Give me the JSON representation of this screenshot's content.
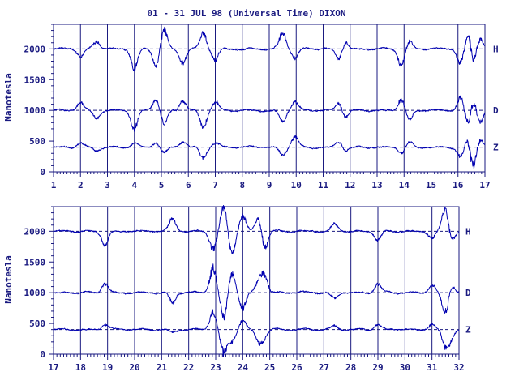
{
  "title": "01 - 31 JUL 98 (Universal Time) DIXON",
  "colors": {
    "ink": "#1a1a80",
    "trace": "#0000b0",
    "background": "#ffffff"
  },
  "chart_data": [
    {
      "type": "line",
      "ylabel": "Nanotesla",
      "ylim": [
        0,
        2400
      ],
      "yticks": [
        0,
        500,
        1000,
        1500,
        2000
      ],
      "xlim": [
        1,
        17
      ],
      "xticks": [
        1,
        2,
        3,
        4,
        5,
        6,
        7,
        8,
        9,
        10,
        11,
        12,
        13,
        14,
        15,
        16,
        17
      ],
      "baselines": [
        2000,
        1000,
        400
      ],
      "series": [
        {
          "name": "H",
          "baseline": 2000,
          "events": [
            [
              2,
              -140
            ],
            [
              2.6,
              120
            ],
            [
              4,
              -320
            ],
            [
              4.8,
              -260
            ],
            [
              5.1,
              300
            ],
            [
              5.8,
              -220
            ],
            [
              6.55,
              260
            ],
            [
              7.0,
              -180
            ],
            [
              9.5,
              260
            ],
            [
              9.95,
              -140
            ],
            [
              11.6,
              -180
            ],
            [
              11.8,
              140
            ],
            [
              13.9,
              -260
            ],
            [
              14.2,
              120
            ],
            [
              16.1,
              -250
            ],
            [
              16.4,
              320
            ],
            [
              16.55,
              -300
            ],
            [
              16.8,
              180
            ]
          ]
        },
        {
          "name": "D",
          "baseline": 1000,
          "events": [
            [
              2,
              120
            ],
            [
              2.6,
              -120
            ],
            [
              4,
              -300
            ],
            [
              4.8,
              180
            ],
            [
              5.1,
              -220
            ],
            [
              5.8,
              160
            ],
            [
              6.55,
              -260
            ],
            [
              7.0,
              140
            ],
            [
              9.5,
              -180
            ],
            [
              9.95,
              150
            ],
            [
              11.6,
              140
            ],
            [
              11.8,
              -120
            ],
            [
              13.9,
              180
            ],
            [
              14.2,
              -150
            ],
            [
              16.1,
              220
            ],
            [
              16.4,
              -300
            ],
            [
              16.55,
              260
            ],
            [
              16.8,
              -200
            ]
          ]
        },
        {
          "name": "Z",
          "baseline": 400,
          "events": [
            [
              2,
              80
            ],
            [
              2.6,
              -60
            ],
            [
              4,
              70
            ],
            [
              4.8,
              80
            ],
            [
              5.1,
              -90
            ],
            [
              5.8,
              90
            ],
            [
              6.55,
              -180
            ],
            [
              7.0,
              70
            ],
            [
              9.5,
              -130
            ],
            [
              9.95,
              180
            ],
            [
              11.6,
              110
            ],
            [
              11.8,
              -70
            ],
            [
              13.9,
              -100
            ],
            [
              14.2,
              70
            ],
            [
              16.1,
              -150
            ],
            [
              16.4,
              200
            ],
            [
              16.55,
              -380
            ],
            [
              16.8,
              150
            ]
          ]
        }
      ]
    },
    {
      "type": "line",
      "ylabel": "Nanotesla",
      "ylim": [
        0,
        2400
      ],
      "yticks": [
        0,
        500,
        1000,
        1500,
        2000
      ],
      "xlim": [
        17,
        32
      ],
      "xticks": [
        17,
        18,
        19,
        20,
        21,
        22,
        23,
        24,
        25,
        26,
        27,
        28,
        29,
        30,
        31,
        32
      ],
      "baselines": [
        2000,
        1000,
        400
      ],
      "series": [
        {
          "name": "H",
          "baseline": 2000,
          "events": [
            [
              18.9,
              -200
            ],
            [
              21.4,
              200
            ],
            [
              22.9,
              -300
            ],
            [
              23.3,
              380
            ],
            [
              23.6,
              -350
            ],
            [
              24.0,
              250
            ],
            [
              24.6,
              280
            ],
            [
              24.8,
              -300
            ],
            [
              27.4,
              120
            ],
            [
              29.0,
              -150
            ],
            [
              31.0,
              -120
            ],
            [
              31.5,
              380
            ],
            [
              31.7,
              -160
            ]
          ]
        },
        {
          "name": "D",
          "baseline": 1000,
          "events": [
            [
              18.9,
              150
            ],
            [
              21.4,
              -160
            ],
            [
              22.9,
              400
            ],
            [
              23.3,
              -400
            ],
            [
              23.6,
              320
            ],
            [
              24.0,
              -250
            ],
            [
              24.6,
              200
            ],
            [
              24.8,
              260
            ],
            [
              27.4,
              -100
            ],
            [
              29.0,
              140
            ],
            [
              31.0,
              120
            ],
            [
              31.5,
              -350
            ],
            [
              31.7,
              150
            ]
          ]
        },
        {
          "name": "Z",
          "baseline": 400,
          "events": [
            [
              18.9,
              90
            ],
            [
              21.4,
              -60
            ],
            [
              22.9,
              280
            ],
            [
              23.3,
              -380
            ],
            [
              23.6,
              -180
            ],
            [
              24.0,
              150
            ],
            [
              24.6,
              -180
            ],
            [
              24.8,
              -120
            ],
            [
              27.4,
              60
            ],
            [
              29.0,
              80
            ],
            [
              31.0,
              80
            ],
            [
              31.5,
              -260
            ],
            [
              31.7,
              -120
            ]
          ]
        }
      ]
    }
  ]
}
